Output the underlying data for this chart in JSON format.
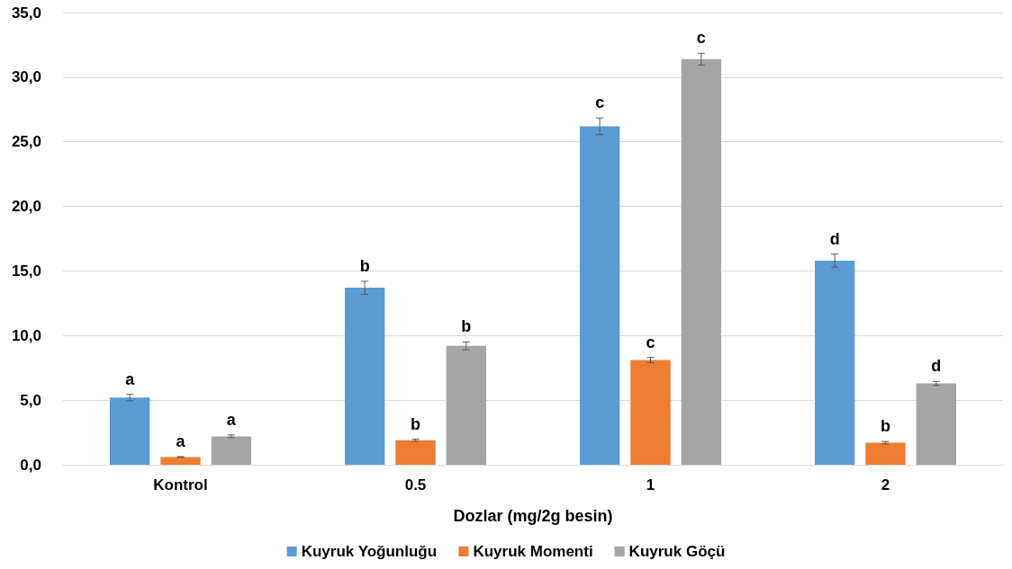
{
  "chart_data": {
    "type": "bar",
    "xlabel": "Dozlar (mg/2g besin)",
    "categories": [
      "Kontrol",
      "0.5",
      "1",
      "2"
    ],
    "series": [
      {
        "name": "Kuyruk Yoğunluğu",
        "color": "#5b9bd5",
        "values": [
          5.2,
          13.7,
          26.2,
          15.8
        ],
        "errors": [
          0.25,
          0.5,
          0.65,
          0.5
        ],
        "value_labels": [
          "a",
          "b",
          "c",
          "d"
        ]
      },
      {
        "name": "Kuyruk Momenti",
        "color": "#ed7d31",
        "values": [
          0.6,
          1.9,
          8.1,
          1.7
        ],
        "errors": [
          0.03,
          0.08,
          0.2,
          0.1
        ],
        "value_labels": [
          "a",
          "b",
          "c",
          "b"
        ]
      },
      {
        "name": "Kuyruk Göçü",
        "color": "#a5a5a5",
        "values": [
          2.2,
          9.2,
          31.4,
          6.3
        ],
        "errors": [
          0.1,
          0.3,
          0.45,
          0.15
        ],
        "value_labels": [
          "a",
          "b",
          "c",
          "d"
        ]
      }
    ],
    "ylim": [
      0,
      35
    ],
    "yticks": [
      {
        "value": 0,
        "label": "0,0"
      },
      {
        "value": 5,
        "label": "5,0"
      },
      {
        "value": 10,
        "label": "10,0"
      },
      {
        "value": 15,
        "label": "15,0"
      },
      {
        "value": 20,
        "label": "20,0"
      },
      {
        "value": 25,
        "label": "25,0"
      },
      {
        "value": 30,
        "label": "30,0"
      },
      {
        "value": 35,
        "label": "35,0"
      }
    ],
    "grid": "y",
    "legend": "bottom"
  }
}
